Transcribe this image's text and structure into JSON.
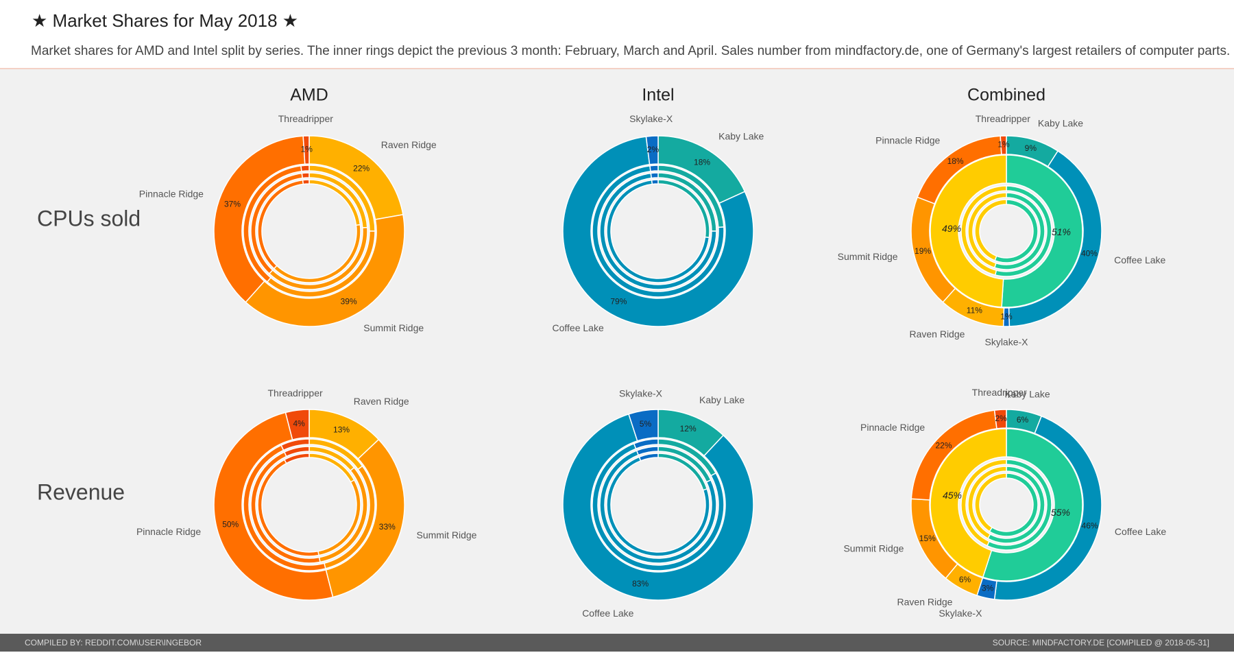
{
  "header": {
    "title": "★ Market Shares for May 2018 ★",
    "subtitle": "Market shares for AMD and Intel split by series. The inner rings depict the previous 3 month: February, March and April. Sales number from mindfactory.de, one of Germany's largest retailers of computer parts."
  },
  "columns": [
    "AMD",
    "Intel",
    "Combined"
  ],
  "rows": [
    "CPUs sold",
    "Revenue"
  ],
  "footer": {
    "left": "COMPILED BY: REDDIT.COM\\USER\\INGEBOR",
    "right": "SOURCE: MINDFACTORY.DE [COMPILED @ 2018-05-31]"
  },
  "chart_data": [
    {
      "type": "donut",
      "categories": [
        "Raven Ridge",
        "Summit Ridge",
        "Pinnacle Ridge",
        "Threadripper"
      ],
      "colors": [
        "#ffb000",
        "#ff9500",
        "#ff6f00",
        "#f04a0a"
      ],
      "values": [
        22,
        39,
        37,
        1
      ],
      "value_labels": [
        "22%",
        "39%",
        "37%",
        "1%"
      ],
      "inner_rings": [
        [
          25,
          36,
          37,
          2
        ],
        [
          24,
          38,
          36,
          2
        ],
        [
          23,
          39,
          36,
          2
        ]
      ]
    },
    {
      "type": "donut",
      "categories": [
        "Kaby Lake",
        "Coffee Lake",
        "Skylake-X"
      ],
      "colors": [
        "#14aaa0",
        "#0090b8",
        "#0a6cc4"
      ],
      "values": [
        18,
        79,
        2
      ],
      "value_labels": [
        "18%",
        "79%",
        "2%"
      ],
      "inner_rings": [
        [
          24,
          74,
          2
        ],
        [
          25,
          73,
          2
        ],
        [
          27,
          71,
          2
        ]
      ]
    },
    {
      "type": "combined-donut",
      "categories": [
        "Kaby Lake",
        "Coffee Lake",
        "Skylake-X",
        "Raven Ridge",
        "Summit Ridge",
        "Pinnacle Ridge",
        "Threadripper"
      ],
      "colors": [
        "#14aaa0",
        "#0090b8",
        "#0a6cc4",
        "#ffb000",
        "#ff9500",
        "#ff6f00",
        "#f04a0a"
      ],
      "values": [
        9,
        40,
        1,
        11,
        19,
        18,
        1
      ],
      "value_labels": [
        "9%",
        "40%",
        "1%",
        "11%",
        "19%",
        "18%",
        "1%"
      ],
      "middle_ring": {
        "values": [
          51,
          49
        ],
        "value_labels": [
          "51%",
          "49%"
        ],
        "colors": [
          "#20cc98",
          "#ffcc00"
        ]
      },
      "inner_rings": [
        [
          54,
          46
        ],
        [
          55,
          45
        ],
        [
          56,
          44
        ]
      ]
    },
    {
      "type": "donut",
      "categories": [
        "Raven Ridge",
        "Summit Ridge",
        "Pinnacle Ridge",
        "Threadripper"
      ],
      "colors": [
        "#ffb000",
        "#ff9500",
        "#ff6f00",
        "#f04a0a"
      ],
      "values": [
        13,
        33,
        50,
        4
      ],
      "value_labels": [
        "13%",
        "33%",
        "50%",
        "4%"
      ],
      "inner_rings": [
        [
          15,
          31,
          47,
          7
        ],
        [
          14,
          33,
          46,
          7
        ],
        [
          17,
          30,
          45,
          8
        ]
      ]
    },
    {
      "type": "donut",
      "categories": [
        "Kaby Lake",
        "Coffee Lake",
        "Skylake-X"
      ],
      "colors": [
        "#14aaa0",
        "#0090b8",
        "#0a6cc4"
      ],
      "values": [
        12,
        83,
        5
      ],
      "value_labels": [
        "12%",
        "83%",
        "5%"
      ],
      "inner_rings": [
        [
          17,
          77,
          6
        ],
        [
          18,
          76,
          6
        ],
        [
          20,
          74,
          6
        ]
      ]
    },
    {
      "type": "combined-donut",
      "categories": [
        "Kaby Lake",
        "Coffee Lake",
        "Skylake-X",
        "Raven Ridge",
        "Summit Ridge",
        "Pinnacle Ridge",
        "Threadripper"
      ],
      "colors": [
        "#14aaa0",
        "#0090b8",
        "#0a6cc4",
        "#ffb000",
        "#ff9500",
        "#ff6f00",
        "#f04a0a"
      ],
      "values": [
        6,
        46,
        3,
        6,
        15,
        22,
        2
      ],
      "value_labels": [
        "6%",
        "46%",
        "3%",
        "6%",
        "15%",
        "22%",
        "2%"
      ],
      "middle_ring": {
        "values": [
          55,
          45
        ],
        "value_labels": [
          "55%",
          "45%"
        ],
        "colors": [
          "#20cc98",
          "#ffcc00"
        ]
      },
      "inner_rings": [
        [
          57,
          43
        ],
        [
          58,
          42
        ],
        [
          59,
          41
        ]
      ]
    }
  ]
}
